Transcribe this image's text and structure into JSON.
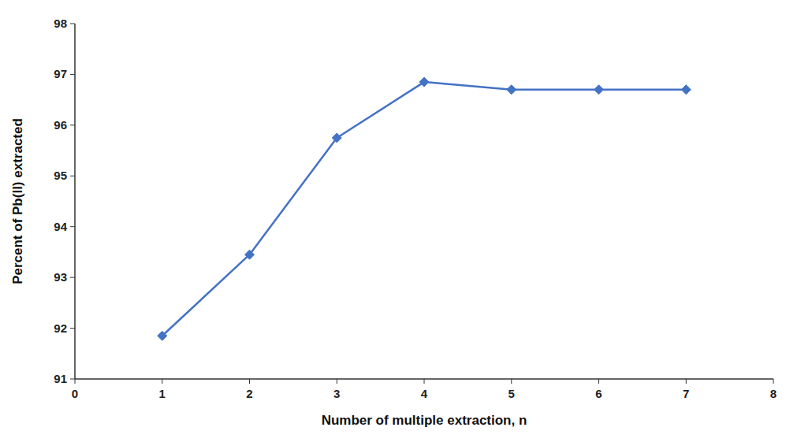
{
  "chart_data": {
    "type": "line",
    "xlabel": "Number of multiple extraction, n",
    "ylabel": "Percent of Pb(II) extracted",
    "x": [
      1,
      2,
      3,
      4,
      5,
      6,
      7
    ],
    "values": [
      91.85,
      93.45,
      95.75,
      96.85,
      96.7,
      96.7,
      96.7
    ],
    "color": "#4472C4",
    "marker": "diamond",
    "xlim": [
      0,
      8
    ],
    "ylim": [
      91,
      98
    ],
    "xticks": [
      0,
      1,
      2,
      3,
      4,
      5,
      6,
      7,
      8
    ],
    "yticks": [
      91,
      92,
      93,
      94,
      95,
      96,
      97,
      98
    ],
    "grid": false
  }
}
